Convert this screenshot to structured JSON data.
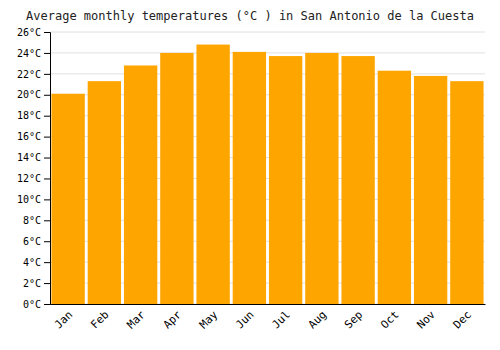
{
  "chart_data": {
    "type": "bar",
    "title": "Average monthly temperatures (°C ) in San Antonio de la Cuesta",
    "categories": [
      "Jan",
      "Feb",
      "Mar",
      "Apr",
      "May",
      "Jun",
      "Jul",
      "Aug",
      "Sep",
      "Oct",
      "Nov",
      "Dec"
    ],
    "values": [
      20.1,
      21.3,
      22.8,
      24.0,
      24.8,
      24.1,
      23.7,
      24.0,
      23.7,
      22.3,
      21.8,
      21.3
    ],
    "color": "#FFA500",
    "ylim": [
      0,
      26
    ],
    "yticks": [
      {
        "value": 0,
        "label": "0°C"
      },
      {
        "value": 2,
        "label": "2°C"
      },
      {
        "value": 4,
        "label": "4°C"
      },
      {
        "value": 6,
        "label": "6°C"
      },
      {
        "value": 8,
        "label": "8°C"
      },
      {
        "value": 10,
        "label": "10°C"
      },
      {
        "value": 12,
        "label": "12°C"
      },
      {
        "value": 14,
        "label": "14°C"
      },
      {
        "value": 16,
        "label": "16°C"
      },
      {
        "value": 18,
        "label": "18°C"
      },
      {
        "value": 20,
        "label": "20°C"
      },
      {
        "value": 22,
        "label": "22°C"
      },
      {
        "value": 24,
        "label": "24°C"
      },
      {
        "value": 26,
        "label": "26°C"
      }
    ],
    "grid": true
  }
}
